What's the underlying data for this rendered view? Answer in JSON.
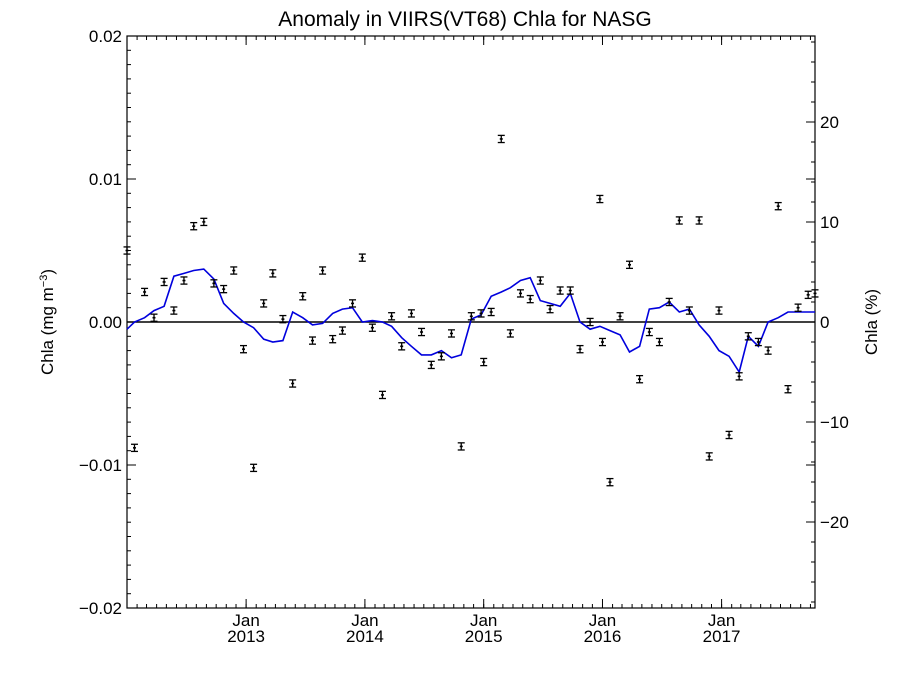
{
  "chart_data": {
    "type": "scatter",
    "title": "Anomaly in VIIRS(VT68) Chla for NASG",
    "ylabel": "Chla (mg m",
    "ylabel_sup": "−3",
    "ylabel_close": ")",
    "y2label": "Chla (%)",
    "ylim": [
      -0.02,
      0.02
    ],
    "y2lim": [
      -28.6,
      28.6
    ],
    "xlim": [
      "2012-01-01",
      "2017-10-15"
    ],
    "y_ticks": [
      {
        "value": 0.02,
        "label": "0.02"
      },
      {
        "value": 0.01,
        "label": "0.01"
      },
      {
        "value": 0.0,
        "label": "0.00"
      },
      {
        "value": -0.01,
        "label": "−0.01"
      },
      {
        "value": -0.02,
        "label": "−0.02"
      }
    ],
    "y2_ticks": [
      {
        "value": 20,
        "label": "20"
      },
      {
        "value": 10,
        "label": "10"
      },
      {
        "value": 0,
        "label": "0"
      },
      {
        "value": -10,
        "label": "−10"
      },
      {
        "value": -20,
        "label": "−20"
      }
    ],
    "x_ticks": [
      {
        "date": "2013-01-01",
        "month": "Jan",
        "year": "2013"
      },
      {
        "date": "2014-01-01",
        "month": "Jan",
        "year": "2014"
      },
      {
        "date": "2015-01-01",
        "month": "Jan",
        "year": "2015"
      },
      {
        "date": "2016-01-01",
        "month": "Jan",
        "year": "2016"
      },
      {
        "date": "2017-01-01",
        "month": "Jan",
        "year": "2017"
      }
    ],
    "series": [
      {
        "kind": "points_with_errorbars",
        "color": "#000000",
        "x": [
          "2012-01-01",
          "2012-01-24",
          "2012-02-24",
          "2012-03-24",
          "2012-04-24",
          "2012-05-24",
          "2012-06-24",
          "2012-07-24",
          "2012-08-24",
          "2012-09-24",
          "2012-10-24",
          "2012-11-24",
          "2012-12-24",
          "2013-01-24",
          "2013-02-24",
          "2013-03-24",
          "2013-04-24",
          "2013-05-24",
          "2013-06-24",
          "2013-07-24",
          "2013-08-24",
          "2013-09-24",
          "2013-10-24",
          "2013-11-24",
          "2013-12-24",
          "2014-01-24",
          "2014-02-24",
          "2014-03-24",
          "2014-04-24",
          "2014-05-24",
          "2014-06-24",
          "2014-07-24",
          "2014-08-24",
          "2014-09-24",
          "2014-10-24",
          "2014-11-24",
          "2014-12-24",
          "2015-01-01",
          "2015-01-24",
          "2015-02-24",
          "2015-03-24",
          "2015-04-24",
          "2015-05-24",
          "2015-06-24",
          "2015-07-24",
          "2015-08-24",
          "2015-09-24",
          "2015-10-24",
          "2015-11-24",
          "2015-12-24",
          "2016-01-01",
          "2016-01-24",
          "2016-02-24",
          "2016-03-24",
          "2016-04-24",
          "2016-05-24",
          "2016-06-24",
          "2016-07-24",
          "2016-08-24",
          "2016-09-24",
          "2016-10-24",
          "2016-11-24",
          "2016-12-24",
          "2017-01-24",
          "2017-02-24",
          "2017-03-24",
          "2017-04-24",
          "2017-05-24",
          "2017-06-24",
          "2017-07-24",
          "2017-08-24",
          "2017-09-24",
          "2017-10-15"
        ],
        "y": [
          0.005,
          -0.0088,
          0.0021,
          0.0003,
          0.0028,
          0.0008,
          0.0029,
          0.0067,
          0.007,
          0.0027,
          0.0023,
          0.0036,
          -0.0019,
          -0.0102,
          0.0013,
          0.0034,
          0.0002,
          -0.0043,
          0.0018,
          -0.0013,
          0.0036,
          -0.0012,
          -0.0006,
          0.0013,
          0.0045,
          -0.0004,
          -0.0051,
          0.0004,
          -0.0017,
          0.0006,
          -0.0007,
          -0.003,
          -0.0024,
          -0.0008,
          -0.0087,
          0.0004,
          0.0006,
          -0.0028,
          0.0007,
          0.0128,
          -0.0008,
          0.002,
          0.0016,
          0.0029,
          0.0009,
          0.0022,
          0.0022,
          -0.0019,
          0.0,
          0.0086,
          -0.0014,
          -0.0112,
          0.0004,
          0.004,
          -0.004,
          -0.0007,
          -0.0014,
          0.0014,
          0.0071,
          0.0008,
          0.0071,
          -0.0094,
          0.0008,
          -0.0079,
          -0.0038,
          -0.001,
          -0.0014,
          -0.002,
          0.0081,
          -0.0047,
          0.001,
          0.0019,
          0.002
        ],
        "err": 0.00025
      },
      {
        "kind": "line",
        "color": "#0000dd",
        "x": [
          "2012-01-01",
          "2012-01-24",
          "2012-02-24",
          "2012-03-24",
          "2012-04-24",
          "2012-05-24",
          "2012-06-24",
          "2012-07-24",
          "2012-08-24",
          "2012-09-24",
          "2012-10-24",
          "2012-11-24",
          "2012-12-24",
          "2013-01-24",
          "2013-02-24",
          "2013-03-24",
          "2013-04-24",
          "2013-05-24",
          "2013-06-24",
          "2013-07-24",
          "2013-08-24",
          "2013-09-24",
          "2013-10-24",
          "2013-11-24",
          "2013-12-24",
          "2014-01-24",
          "2014-02-24",
          "2014-03-24",
          "2014-04-24",
          "2014-05-24",
          "2014-06-24",
          "2014-07-24",
          "2014-08-24",
          "2014-09-24",
          "2014-10-24",
          "2014-11-24",
          "2014-12-24",
          "2015-01-24",
          "2015-02-24",
          "2015-03-24",
          "2015-04-24",
          "2015-05-24",
          "2015-06-24",
          "2015-07-24",
          "2015-08-24",
          "2015-09-24",
          "2015-10-24",
          "2015-11-24",
          "2015-12-24",
          "2016-01-24",
          "2016-02-24",
          "2016-03-24",
          "2016-04-24",
          "2016-05-24",
          "2016-06-24",
          "2016-07-24",
          "2016-08-24",
          "2016-09-24",
          "2016-10-24",
          "2016-11-24",
          "2016-12-24",
          "2017-01-24",
          "2017-02-24",
          "2017-03-24",
          "2017-04-24",
          "2017-05-24",
          "2017-06-24",
          "2017-07-24",
          "2017-08-24",
          "2017-09-24",
          "2017-10-15"
        ],
        "y": [
          -0.0005,
          0.0,
          0.0003,
          0.0008,
          0.0011,
          0.0032,
          0.0034,
          0.0036,
          0.0037,
          0.003,
          0.0013,
          0.0006,
          0.0,
          -0.0004,
          -0.0012,
          -0.0014,
          -0.0013,
          0.0007,
          0.0003,
          -0.0002,
          -0.0001,
          0.0006,
          0.0009,
          0.001,
          0.0,
          0.0001,
          0.0,
          -0.0003,
          -0.0011,
          -0.0017,
          -0.0023,
          -0.0023,
          -0.002,
          -0.0025,
          -0.0023,
          0.0002,
          0.0005,
          0.0018,
          0.0021,
          0.0024,
          0.0029,
          0.0031,
          0.0015,
          0.0013,
          0.0011,
          0.002,
          0.0,
          -0.0005,
          -0.0003,
          -0.0006,
          -0.0009,
          -0.0021,
          -0.0017,
          0.0009,
          0.001,
          0.0014,
          0.0007,
          0.0009,
          -0.0002,
          -0.001,
          -0.002,
          -0.0024,
          -0.0035,
          -0.001,
          -0.0017,
          0.0,
          0.0003,
          0.0007,
          0.0007,
          0.0007,
          0.0007
        ]
      }
    ],
    "zero_line": 0,
    "grid": false,
    "legend": "none"
  }
}
